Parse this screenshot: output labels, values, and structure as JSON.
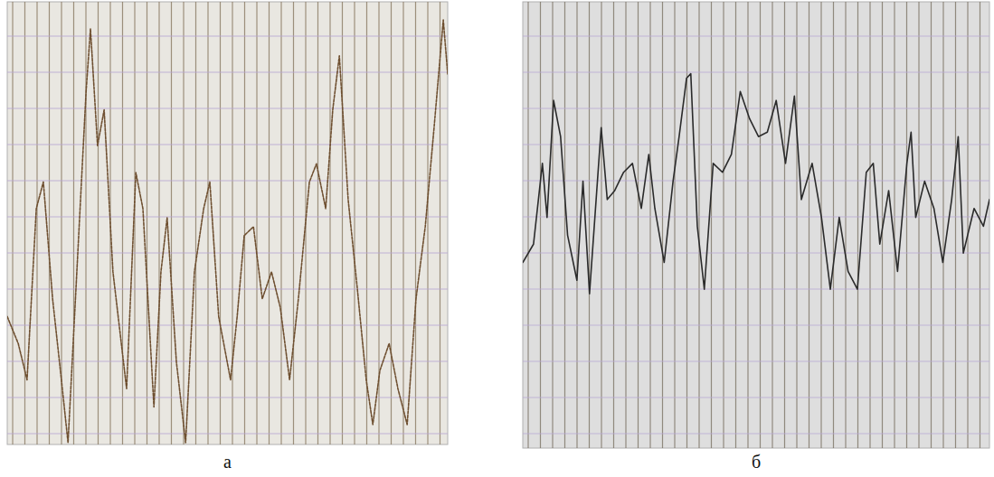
{
  "chart_data": [
    {
      "type": "line",
      "title": "а",
      "color": "#6e4f30",
      "line_style": "dotted",
      "grid": true,
      "tick_labels": false,
      "xlim": [
        0,
        100
      ],
      "ylim": [
        0,
        100
      ],
      "x": [
        0,
        2.5,
        4.5,
        6.6,
        8.2,
        10.3,
        12.3,
        13.8,
        15.8,
        17.9,
        18.9,
        20.5,
        22.0,
        24.0,
        27.1,
        29.2,
        30.8,
        33.3,
        34.9,
        36.3,
        38.4,
        40.5,
        42.5,
        44.6,
        46.0,
        48.0,
        50.7,
        52.2,
        53.8,
        55.9,
        57.9,
        60.0,
        62.0,
        64.1,
        66.1,
        68.6,
        70.2,
        72.3,
        73.9,
        75.4,
        77.4,
        79.5,
        81.5,
        83.0,
        84.6,
        86.7,
        88.7,
        90.8,
        92.8,
        94.9,
        96.9,
        99.0,
        100
      ],
      "values": [
        28.9,
        22.8,
        14.6,
        53.3,
        59.3,
        32.9,
        14.6,
        0.4,
        39.0,
        79.7,
        93.9,
        67.5,
        75.6,
        39.0,
        12.6,
        61.4,
        53.3,
        8.5,
        39.0,
        51.2,
        18.7,
        0.4,
        39.0,
        53.3,
        59.3,
        28.9,
        14.6,
        28.9,
        47.2,
        49.2,
        32.9,
        39.0,
        30.9,
        14.6,
        32.9,
        59.3,
        63.4,
        53.3,
        75.6,
        87.8,
        55.3,
        35.0,
        14.6,
        4.5,
        16.7,
        22.8,
        12.6,
        4.5,
        32.9,
        49.2,
        71.5,
        95.9,
        83.7
      ]
    },
    {
      "type": "line",
      "title": "б",
      "color": "#2b2b2b",
      "line_style": "solid",
      "grid": true,
      "tick_labels": false,
      "xlim": [
        0,
        100
      ],
      "ylim": [
        0,
        100
      ],
      "x": [
        0,
        2.3,
        4.2,
        5.2,
        6.6,
        8.1,
        9.6,
        11.6,
        12.9,
        14.3,
        16.8,
        18.1,
        19.7,
        21.6,
        23.5,
        25.4,
        27.0,
        28.3,
        30.3,
        32.2,
        33.5,
        35.1,
        36.0,
        37.4,
        38.9,
        40.8,
        42.8,
        44.7,
        46.6,
        48.6,
        50.5,
        52.4,
        54.3,
        56.3,
        58.2,
        59.7,
        62.0,
        64.0,
        65.9,
        67.8,
        69.7,
        71.7,
        73.6,
        75.1,
        76.5,
        78.4,
        80.3,
        82.3,
        83.2,
        84.2,
        86.1,
        88.1,
        90.0,
        91.9,
        93.3,
        94.4,
        96.7,
        98.7,
        100
      ],
      "values": [
        41.6,
        45.7,
        63.8,
        51.7,
        77.9,
        69.8,
        47.7,
        37.6,
        59.8,
        34.6,
        71.8,
        55.7,
        57.7,
        61.8,
        63.8,
        53.7,
        65.8,
        53.7,
        41.6,
        59.8,
        69.8,
        82.9,
        83.9,
        49.7,
        35.6,
        63.8,
        61.8,
        65.8,
        79.9,
        73.8,
        69.8,
        70.8,
        77.9,
        63.8,
        78.9,
        55.7,
        63.8,
        51.7,
        35.6,
        51.7,
        39.6,
        35.6,
        61.8,
        63.8,
        45.7,
        57.7,
        39.6,
        63.8,
        70.8,
        51.7,
        59.8,
        53.7,
        41.6,
        55.7,
        69.8,
        43.7,
        53.7,
        49.7,
        55.7
      ]
    }
  ]
}
